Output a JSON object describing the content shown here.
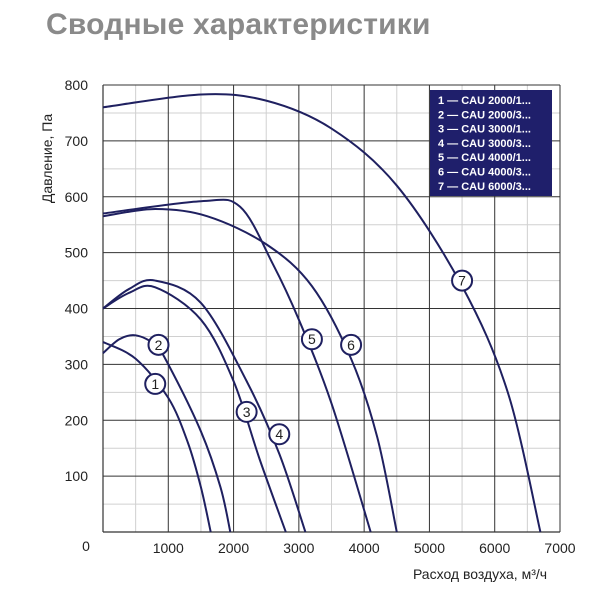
{
  "title": "Сводные характеристики",
  "chart_data": {
    "type": "line",
    "title": "Сводные характеристики",
    "xlabel": "Расход воздуха, м³/ч",
    "ylabel": "Давление, Па",
    "xlim": [
      0,
      7000
    ],
    "ylim": [
      0,
      800
    ],
    "xticks": [
      "0",
      "1000",
      "2000",
      "3000",
      "4000",
      "5000",
      "6000",
      "7000"
    ],
    "yticks": [
      "100",
      "200",
      "300",
      "400",
      "500",
      "600",
      "700",
      "800"
    ],
    "grid": true,
    "legend_position": "top-right",
    "colors": {
      "line": "#1f2060",
      "legend_bg": "#1f1f6b",
      "grid_major": "#333333",
      "grid_minor": "#d0d0d0",
      "title": "#8a8a8a"
    },
    "series": [
      {
        "name": "1 — CAU 2000/1...",
        "label": "1",
        "label_at": [
          800,
          265
        ],
        "x": [
          0,
          500,
          1000,
          1300,
          1500,
          1650
        ],
        "y": [
          340,
          310,
          240,
          160,
          80,
          0
        ]
      },
      {
        "name": "2 — CAU 2000/3...",
        "label": "2",
        "label_at": [
          850,
          335
        ],
        "x": [
          0,
          250,
          500,
          800,
          1000,
          1500,
          1800,
          1950
        ],
        "y": [
          320,
          345,
          352,
          335,
          300,
          180,
          80,
          0
        ]
      },
      {
        "name": "3 — CAU 3000/1...",
        "label": "3",
        "label_at": [
          2200,
          215
        ],
        "x": [
          0,
          400,
          800,
          1500,
          2000,
          2400,
          2800
        ],
        "y": [
          400,
          428,
          438,
          380,
          270,
          130,
          0
        ]
      },
      {
        "name": "4 — CAU 3000/3...",
        "label": "4",
        "label_at": [
          2700,
          175
        ],
        "x": [
          0,
          400,
          800,
          1500,
          2200,
          2700,
          3100
        ],
        "y": [
          400,
          435,
          450,
          410,
          270,
          140,
          0
        ]
      },
      {
        "name": "5 — CAU 4000/1...",
        "label": "5",
        "label_at": [
          3200,
          345
        ],
        "x": [
          0,
          1500,
          2100,
          2600,
          3000,
          3500,
          4100
        ],
        "y": [
          570,
          592,
          582,
          480,
          380,
          230,
          0
        ]
      },
      {
        "name": "6 — CAU 4000/3...",
        "label": "6",
        "label_at": [
          3800,
          335
        ],
        "x": [
          0,
          800,
          1600,
          2500,
          3200,
          3800,
          4200,
          4500
        ],
        "y": [
          565,
          578,
          565,
          515,
          440,
          310,
          170,
          0
        ]
      },
      {
        "name": "7 — CAU 6000/3...",
        "label": "7",
        "label_at": [
          5500,
          450
        ],
        "x": [
          0,
          1500,
          2500,
          3500,
          4500,
          5500,
          6200,
          6700
        ],
        "y": [
          760,
          783,
          772,
          722,
          620,
          440,
          250,
          0
        ]
      }
    ]
  }
}
